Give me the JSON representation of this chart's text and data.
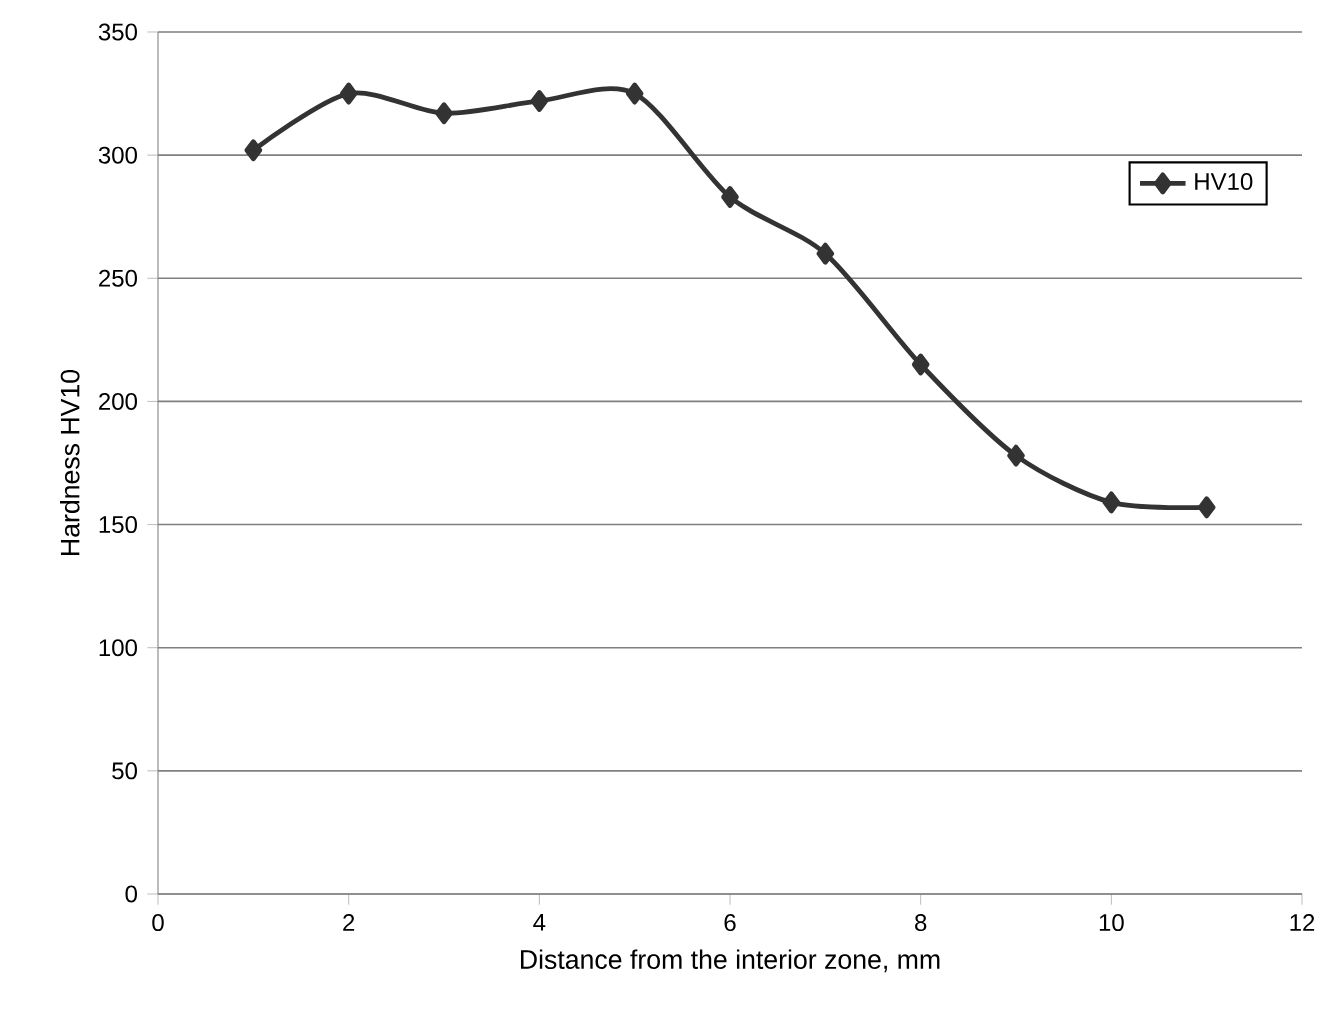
{
  "chart_data": {
    "type": "line",
    "xlabel": "Distance from the interior zone, mm",
    "ylabel": "Hardness HV10",
    "x": [
      1,
      2,
      3,
      4,
      5,
      6,
      7,
      8,
      9,
      10,
      11
    ],
    "series": [
      {
        "name": "HV10",
        "color": "#333333",
        "values": [
          302,
          325,
          317,
          322,
          325,
          283,
          260,
          215,
          178,
          159,
          157
        ]
      }
    ],
    "xlim": [
      0,
      12
    ],
    "xticks": [
      0,
      2,
      4,
      6,
      8,
      10,
      12
    ],
    "ylim": [
      0,
      350
    ],
    "yticks": [
      0,
      50,
      100,
      150,
      200,
      250,
      300,
      350
    ],
    "grid": "y",
    "legend": "top right",
    "marker": "diamond",
    "line_style": "solid"
  }
}
